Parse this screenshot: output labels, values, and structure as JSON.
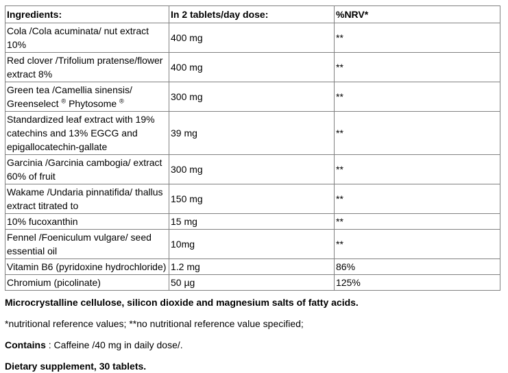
{
  "page": {
    "background": "#ffffff",
    "text_color": "#000000",
    "table_border_color": "#808080"
  },
  "table": {
    "columns": [
      {
        "label": "Ingredients:"
      },
      {
        "label": "In 2 tablets/day dose:"
      },
      {
        "label": "%NRV*"
      }
    ],
    "rows": [
      {
        "ingredient": "Cola /Cola acuminata/ nut extract\n10%",
        "dose": "400 mg",
        "nrv": "**"
      },
      {
        "ingredient": "Red clover /Trifolium pratense/flower\nextract 8%",
        "dose": "400 mg",
        "nrv": "**"
      },
      {
        "ingredient": "Green tea /Camellia sinensis/\nGreenselect ® Phytosome ®",
        "dose": "300 mg",
        "nrv": "**"
      },
      {
        "ingredient": "Standardized leaf extract with 19%\ncatechins and 13% EGCG and\nepigallocatechin-gallate",
        "dose": "39 mg",
        "nrv": "**"
      },
      {
        "ingredient": "Garcinia /Garcinia cambogia/ extract\n60% of fruit",
        "dose": "300 mg",
        "nrv": "**"
      },
      {
        "ingredient": "Wakame /Undaria pinnatifida/ thallus\nextract titrated to",
        "dose": "150 mg",
        "nrv": "**"
      },
      {
        "ingredient": "10% fucoxanthin",
        "dose": "15 mg",
        "nrv": "**"
      },
      {
        "ingredient": "Fennel /Foeniculum vulgare/ seed\nessential oil",
        "dose": "10mg",
        "nrv": "**"
      },
      {
        "ingredient": "Vitamin B6 (pyridoxine hydrochloride)",
        "dose": "1.2 mg",
        "nrv": "86%"
      },
      {
        "ingredient": "Chromium (picolinate)",
        "dose": "50 µg",
        "nrv": "125%"
      }
    ]
  },
  "notes": {
    "excipients": "Microcrystalline cellulose, silicon dioxide and magnesium salts of fatty acids.",
    "nrv_legend": "*nutritional reference values; **no nutritional reference value specified;",
    "contains_label": "Contains",
    "contains_text": ": Caffeine /40 mg in daily dose/.",
    "supplement": "Dietary supplement, 30 tablets."
  }
}
